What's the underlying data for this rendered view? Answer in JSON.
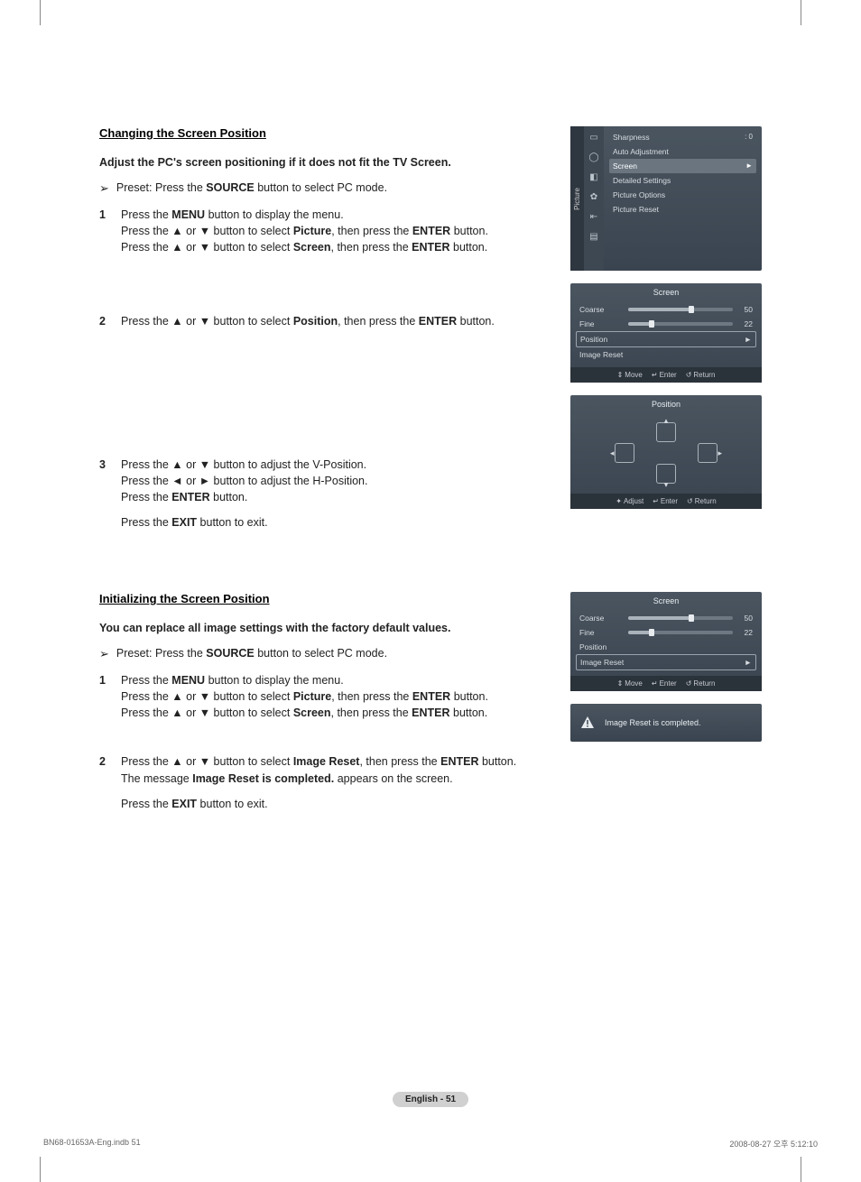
{
  "section1": {
    "heading": "Changing the Screen Position",
    "bold": "Adjust the PC's screen positioning if it does not fit the TV Screen.",
    "preset_prefix": "Preset: Press the ",
    "preset_bold": "SOURCE",
    "preset_suffix": " button to select PC mode.",
    "step1": {
      "num": "1",
      "l1a": "Press the ",
      "l1b": "MENU",
      "l1c": " button to display the menu.",
      "l2a": "Press the ▲ or ▼ button to select ",
      "l2b": "Picture",
      "l2c": ", then press the ",
      "l2d": "ENTER",
      "l2e": " button.",
      "l3a": "Press the ▲ or ▼ button to select ",
      "l3b": "Screen",
      "l3c": ", then press the ",
      "l3d": "ENTER",
      "l3e": " button."
    },
    "step2": {
      "num": "2",
      "l1a": "Press the ▲ or ▼ button to select ",
      "l1b": "Position",
      "l1c": ", then press the ",
      "l1d": "ENTER",
      "l1e": " button."
    },
    "step3": {
      "num": "3",
      "l1": "Press the ▲ or ▼ button to adjust the V-Position.",
      "l2": "Press the ◄ or ► button to adjust the H-Position.",
      "l3a": "Press the ",
      "l3b": "ENTER",
      "l3c": " button.",
      "l4a": "Press the ",
      "l4b": "EXIT",
      "l4c": " button to exit."
    }
  },
  "section2": {
    "heading": "Initializing the Screen Position",
    "bold": "You can replace all image settings with the factory default values.",
    "preset_prefix": "Preset: Press the ",
    "preset_bold": "SOURCE",
    "preset_suffix": " button to select PC mode.",
    "step1": {
      "num": "1",
      "l1a": "Press the ",
      "l1b": "MENU",
      "l1c": " button to display the menu.",
      "l2a": "Press the ▲ or ▼ button to select ",
      "l2b": "Picture",
      "l2c": ", then press the ",
      "l2d": "ENTER",
      "l2e": " button.",
      "l3a": "Press the ▲ or ▼ button to select ",
      "l3b": "Screen",
      "l3c": ", then press the ",
      "l3d": "ENTER",
      "l3e": " button."
    },
    "step2": {
      "num": "2",
      "l1a": "Press the ▲ or ▼ button to select ",
      "l1b": "Image Reset",
      "l1c": ", then press the ",
      "l1d": "ENTER",
      "l1e": " button.",
      "l2a": "The message ",
      "l2b": "Image Reset is completed.",
      "l2c": " appears on the screen.",
      "l3a": "Press the ",
      "l3b": "EXIT",
      "l3c": " button to exit."
    }
  },
  "osd_picture": {
    "side_label": "Picture",
    "rows": [
      {
        "label": "Sharpness",
        "value": ": 0"
      },
      {
        "label": "Auto Adjustment",
        "value": ""
      },
      {
        "label": "Screen",
        "value": "►",
        "hl": true
      },
      {
        "label": "Detailed Settings",
        "value": ""
      },
      {
        "label": "Picture Options",
        "value": ""
      },
      {
        "label": "Picture Reset",
        "value": ""
      }
    ]
  },
  "osd_screen1": {
    "title": "Screen",
    "coarse_label": "Coarse",
    "coarse_val": "50",
    "coarse_pct": 60,
    "fine_label": "Fine",
    "fine_val": "22",
    "fine_pct": 22,
    "position_label": "Position",
    "position_arrow": "►",
    "reset_label": "Image Reset",
    "selected": 2,
    "footer": {
      "move": "Move",
      "enter": "Enter",
      "return": "Return"
    }
  },
  "osd_position": {
    "title": "Position",
    "footer": {
      "adjust": "Adjust",
      "enter": "Enter",
      "return": "Return"
    }
  },
  "osd_screen2": {
    "title": "Screen",
    "coarse_label": "Coarse",
    "coarse_val": "50",
    "coarse_pct": 60,
    "fine_label": "Fine",
    "fine_val": "22",
    "fine_pct": 22,
    "position_label": "Position",
    "reset_label": "Image Reset",
    "reset_arrow": "►",
    "selected": 3,
    "footer": {
      "move": "Move",
      "enter": "Enter",
      "return": "Return"
    }
  },
  "msg": "Image Reset is completed.",
  "page_label": "English - 51",
  "footer_left": "BN68-01653A-Eng.indb   51",
  "footer_right": "2008-08-27   오후 5:12:10",
  "colors": {
    "osd_bg_top": "#4a5560",
    "osd_bg_bot": "#3a4450",
    "osd_text": "#d8dce0",
    "hl": "#6a7580",
    "slider_track": "#6e7882",
    "slider_fill": "#aab2ba",
    "slider_thumb": "#e8ecef",
    "footer_bg": "#2a323a",
    "page_label_bg": "#d0d0d0"
  }
}
